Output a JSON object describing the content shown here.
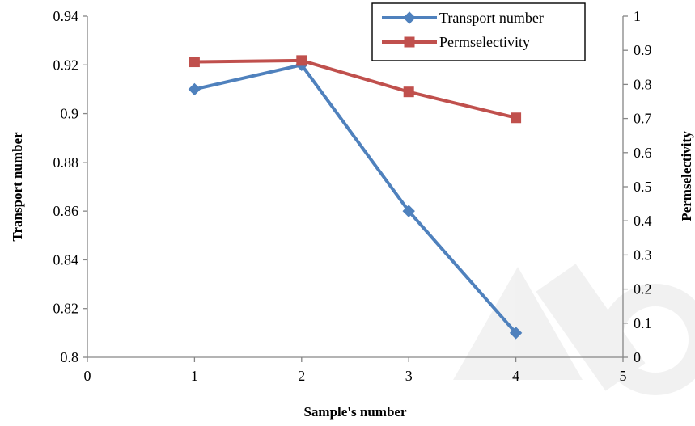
{
  "chart_data": {
    "type": "line",
    "xlabel": "Sample's number",
    "ylabel": "Transport number",
    "y2label": "Permselectivity",
    "xlim": [
      0,
      5
    ],
    "ylim": [
      0.8,
      0.94
    ],
    "y2lim": [
      0,
      1
    ],
    "x_ticks": [
      "0",
      "1",
      "2",
      "3",
      "4",
      "5"
    ],
    "y_ticks": [
      "0.8",
      "0.82",
      "0.84",
      "0.86",
      "0.88",
      "0.9",
      "0.92",
      "0.94"
    ],
    "y2_ticks": [
      "0",
      "0.1",
      "0.2",
      "0.3",
      "0.4",
      "0.5",
      "0.6",
      "0.7",
      "0.8",
      "0.9",
      "1"
    ],
    "grid": false,
    "legend_position": "top-right",
    "series": [
      {
        "name": "Transport number",
        "axis": "left",
        "marker": "diamond",
        "color": "#4F81BD",
        "x": [
          1,
          2,
          3,
          4
        ],
        "values": [
          0.91,
          0.92,
          0.86,
          0.81
        ]
      },
      {
        "name": "Permselectivity",
        "axis": "right",
        "marker": "square",
        "color": "#C0504D",
        "x": [
          1,
          2,
          3,
          4
        ],
        "values": [
          0.866,
          0.87,
          0.778,
          0.702
        ]
      }
    ]
  }
}
